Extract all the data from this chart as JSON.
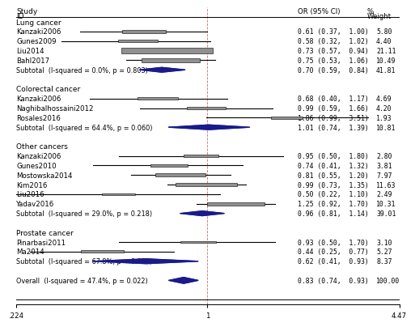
{
  "studies": [
    {
      "label": "Lung cancer",
      "or": null,
      "ci_lo": null,
      "ci_hi": null,
      "or_str": "",
      "w_str": "",
      "is_group": true,
      "is_subtotal": false,
      "is_overall": false,
      "weight": 0
    },
    {
      "label": "Kanzaki2006",
      "or": 0.61,
      "ci_lo": 0.37,
      "ci_hi": 1.0,
      "or_str": "0.61 (0.37,  1.00)",
      "w_str": "5.80",
      "is_group": false,
      "is_subtotal": false,
      "is_overall": false,
      "weight": 5.8
    },
    {
      "label": "Gunes2009",
      "or": 0.58,
      "ci_lo": 0.32,
      "ci_hi": 1.02,
      "or_str": "0.58 (0.32,  1.02)",
      "w_str": "4.40",
      "is_group": false,
      "is_subtotal": false,
      "is_overall": false,
      "weight": 4.4
    },
    {
      "label": "Liu2014",
      "or": 0.73,
      "ci_lo": 0.57,
      "ci_hi": 0.94,
      "or_str": "0.73 (0.57,  0.94)",
      "w_str": "21.11",
      "is_group": false,
      "is_subtotal": false,
      "is_overall": false,
      "weight": 21.11
    },
    {
      "label": "Bahl2017",
      "or": 0.75,
      "ci_lo": 0.53,
      "ci_hi": 1.06,
      "or_str": "0.75 (0.53,  1.06)",
      "w_str": "10.49",
      "is_group": false,
      "is_subtotal": false,
      "is_overall": false,
      "weight": 10.49
    },
    {
      "label": "Subtotal  (I-squared = 0.0%, p = 0.803)",
      "or": 0.7,
      "ci_lo": 0.59,
      "ci_hi": 0.84,
      "or_str": "0.70 (0.59,  0.84)",
      "w_str": "41.81",
      "is_group": false,
      "is_subtotal": true,
      "is_overall": false,
      "weight": 0
    },
    {
      "label": ".",
      "or": null,
      "ci_lo": null,
      "ci_hi": null,
      "or_str": "",
      "w_str": "",
      "is_group": true,
      "is_subtotal": false,
      "is_overall": false,
      "weight": 0
    },
    {
      "label": "Colorectal cancer",
      "or": null,
      "ci_lo": null,
      "ci_hi": null,
      "or_str": "",
      "w_str": "",
      "is_group": true,
      "is_subtotal": false,
      "is_overall": false,
      "weight": 0
    },
    {
      "label": "Kanzaki2006",
      "or": 0.68,
      "ci_lo": 0.4,
      "ci_hi": 1.17,
      "or_str": "0.68 (0.40,  1.17)",
      "w_str": "4.69",
      "is_group": false,
      "is_subtotal": false,
      "is_overall": false,
      "weight": 4.69
    },
    {
      "label": "Naghibalhossaini2012",
      "or": 0.99,
      "ci_lo": 0.59,
      "ci_hi": 1.66,
      "or_str": "0.99 (0.59,  1.66)",
      "w_str": "4.20",
      "is_group": false,
      "is_subtotal": false,
      "is_overall": false,
      "weight": 4.2
    },
    {
      "label": "Rosales2016",
      "or": 1.86,
      "ci_lo": 0.99,
      "ci_hi": 3.51,
      "or_str": "1.86 (0.99,  3.51)",
      "w_str": "1.93",
      "is_group": false,
      "is_subtotal": false,
      "is_overall": false,
      "weight": 1.93
    },
    {
      "label": "Subtotal  (I-squared = 64.4%, p = 0.060)",
      "or": 1.01,
      "ci_lo": 0.74,
      "ci_hi": 1.39,
      "or_str": "1.01 (0.74,  1.39)",
      "w_str": "10.81",
      "is_group": false,
      "is_subtotal": true,
      "is_overall": false,
      "weight": 0
    },
    {
      "label": ".",
      "or": null,
      "ci_lo": null,
      "ci_hi": null,
      "or_str": "",
      "w_str": "",
      "is_group": true,
      "is_subtotal": false,
      "is_overall": false,
      "weight": 0
    },
    {
      "label": "Other cancers",
      "or": null,
      "ci_lo": null,
      "ci_hi": null,
      "or_str": "",
      "w_str": "",
      "is_group": true,
      "is_subtotal": false,
      "is_overall": false,
      "weight": 0
    },
    {
      "label": "Kanzaki2006",
      "or": 0.95,
      "ci_lo": 0.5,
      "ci_hi": 1.8,
      "or_str": "0.95 (0.50,  1.80)",
      "w_str": "2.80",
      "is_group": false,
      "is_subtotal": false,
      "is_overall": false,
      "weight": 2.8
    },
    {
      "label": "Gunes2010",
      "or": 0.74,
      "ci_lo": 0.41,
      "ci_hi": 1.32,
      "or_str": "0.74 (0.41,  1.32)",
      "w_str": "3.81",
      "is_group": false,
      "is_subtotal": false,
      "is_overall": false,
      "weight": 3.81
    },
    {
      "label": "Mostowska2014",
      "or": 0.81,
      "ci_lo": 0.55,
      "ci_hi": 1.2,
      "or_str": "0.81 (0.55,  1.20)",
      "w_str": "7.97",
      "is_group": false,
      "is_subtotal": false,
      "is_overall": false,
      "weight": 7.97
    },
    {
      "label": "Kim2016",
      "or": 0.99,
      "ci_lo": 0.73,
      "ci_hi": 1.35,
      "or_str": "0.99 (0.73,  1.35)",
      "w_str": "11.63",
      "is_group": false,
      "is_subtotal": false,
      "is_overall": false,
      "weight": 11.63
    },
    {
      "label": "Liu2016",
      "or": 0.5,
      "ci_lo": 0.22,
      "ci_hi": 1.1,
      "or_str": "0.50 (0.22,  1.10)",
      "w_str": "2.49",
      "is_group": false,
      "is_subtotal": false,
      "is_overall": false,
      "weight": 2.49
    },
    {
      "label": "Yadav2016",
      "or": 1.25,
      "ci_lo": 0.92,
      "ci_hi": 1.7,
      "or_str": "1.25 (0.92,  1.70)",
      "w_str": "10.31",
      "is_group": false,
      "is_subtotal": false,
      "is_overall": false,
      "weight": 10.31
    },
    {
      "label": "Subtotal  (I-squared = 29.0%, p = 0.218)",
      "or": 0.96,
      "ci_lo": 0.81,
      "ci_hi": 1.14,
      "or_str": "0.96 (0.81,  1.14)",
      "w_str": "39.01",
      "is_group": false,
      "is_subtotal": true,
      "is_overall": false,
      "weight": 0
    },
    {
      "label": ".",
      "or": null,
      "ci_lo": null,
      "ci_hi": null,
      "or_str": "",
      "w_str": "",
      "is_group": true,
      "is_subtotal": false,
      "is_overall": false,
      "weight": 0
    },
    {
      "label": "Prostate cancer",
      "or": null,
      "ci_lo": null,
      "ci_hi": null,
      "or_str": "",
      "w_str": "",
      "is_group": true,
      "is_subtotal": false,
      "is_overall": false,
      "weight": 0
    },
    {
      "label": "Pinarbasi2011",
      "or": 0.93,
      "ci_lo": 0.5,
      "ci_hi": 1.7,
      "or_str": "0.93 (0.50,  1.70)",
      "w_str": "3.10",
      "is_group": false,
      "is_subtotal": false,
      "is_overall": false,
      "weight": 3.1
    },
    {
      "label": "Ma2014",
      "or": 0.44,
      "ci_lo": 0.25,
      "ci_hi": 0.77,
      "or_str": "0.44 (0.25,  0.77)",
      "w_str": "5.27",
      "is_group": false,
      "is_subtotal": false,
      "is_overall": false,
      "weight": 5.27
    },
    {
      "label": "Subtotal  (I-squared = 67.8%, p = 0.078)",
      "or": 0.62,
      "ci_lo": 0.41,
      "ci_hi": 0.93,
      "or_str": "0.62 (0.41,  0.93)",
      "w_str": "8.37",
      "is_group": false,
      "is_subtotal": true,
      "is_overall": false,
      "weight": 0
    },
    {
      "label": ".",
      "or": null,
      "ci_lo": null,
      "ci_hi": null,
      "or_str": "",
      "w_str": "",
      "is_group": true,
      "is_subtotal": false,
      "is_overall": false,
      "weight": 0
    },
    {
      "label": "Overall  (I-squared = 47.4%, p = 0.022)",
      "or": 0.83,
      "ci_lo": 0.74,
      "ci_hi": 0.93,
      "or_str": "0.83 (0.74,  0.93)",
      "w_str": "100.00",
      "is_group": false,
      "is_subtotal": false,
      "is_overall": true,
      "weight": 0
    }
  ],
  "xmin": 0.224,
  "xmax": 4.47,
  "x_ticks": [
    0.224,
    1.0,
    4.47
  ],
  "x_tick_labels": [
    ".224",
    "1",
    "4.47"
  ],
  "diamond_color": "#1a1a8c",
  "box_color": "#909090",
  "bg_color": "#ffffff",
  "font_size": 6.2,
  "group_font_size": 6.5,
  "max_weight": 21.11
}
